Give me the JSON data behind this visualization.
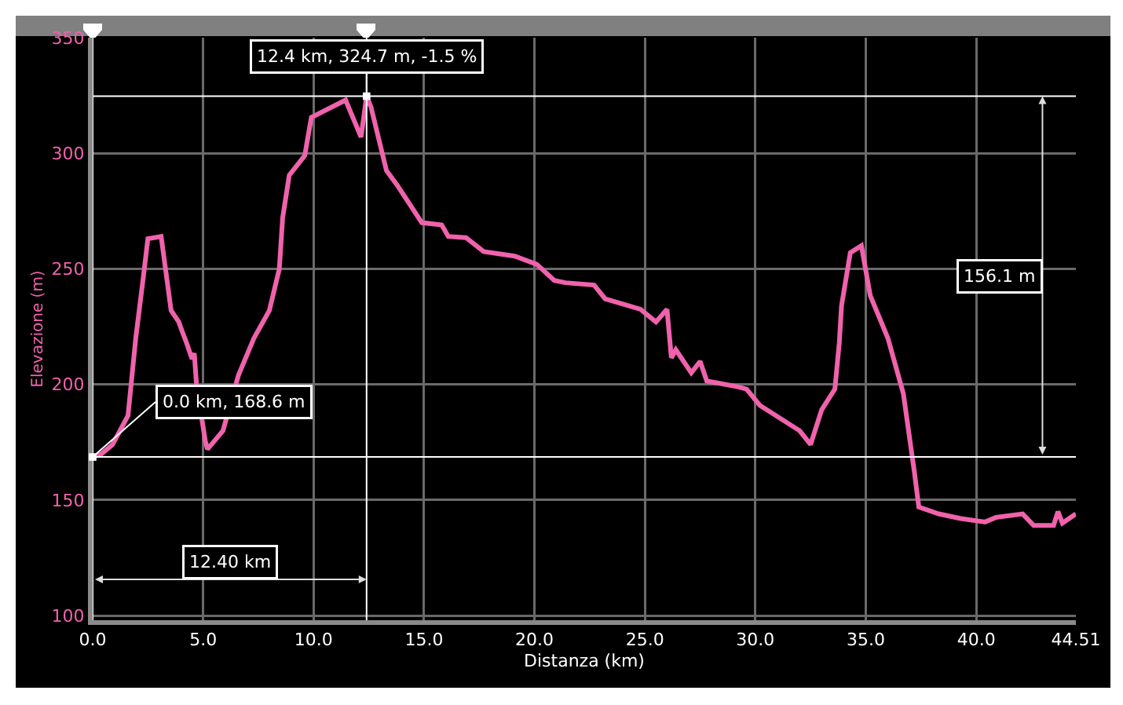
{
  "chart_data": {
    "type": "line",
    "xlabel": "Distanza (km)",
    "ylabel": "Elevazione (m)",
    "x": [
      0,
      0.4,
      0.9,
      1.6,
      1.95,
      2.3,
      2.5,
      3.1,
      3.55,
      3.9,
      4.05,
      4.25,
      4.5,
      4.6,
      4.7,
      5.1,
      5.2,
      5.9,
      6.6,
      7.3,
      8.0,
      8.45,
      8.6,
      8.9,
      9.6,
      9.9,
      11.45,
      12.15,
      12.4,
      12.6,
      13.3,
      13.8,
      14.9,
      15.8,
      16.1,
      16.9,
      17.7,
      19.1,
      20.1,
      20.9,
      21.4,
      22.7,
      23.2,
      24.8,
      25.5,
      26.0,
      26.2,
      26.4,
      27.1,
      27.5,
      27.8,
      29.2,
      29.6,
      30.2,
      32.0,
      32.5,
      33.0,
      33.6,
      33.8,
      33.9,
      34.3,
      34.8,
      35.2,
      36.0,
      36.7,
      37.2,
      37.4,
      38.3,
      39.3,
      40.4,
      40.9,
      42.1,
      42.6,
      43.5,
      43.7,
      43.9,
      44.51
    ],
    "series": [
      {
        "color": "#f062ac",
        "values": [
          168.6,
          170,
          174,
          186.5,
          220,
          247,
          263,
          264,
          232,
          227,
          223,
          218,
          211,
          213.5,
          200,
          175.5,
          172,
          180,
          204,
          220,
          232,
          250,
          272,
          290.5,
          299,
          315.5,
          323,
          307,
          324.7,
          320,
          292.5,
          286,
          270,
          269,
          264,
          263.5,
          257.5,
          255.5,
          252,
          245,
          244,
          243,
          237,
          232.5,
          227,
          232.5,
          211.5,
          215,
          205,
          210,
          201.5,
          199,
          198,
          191,
          180,
          174,
          189,
          198,
          218,
          234,
          257,
          260,
          238.5,
          220,
          196,
          162,
          147,
          144,
          142,
          140.5,
          142.5,
          144,
          139,
          139,
          145,
          140,
          144
        ]
      }
    ],
    "xlim": [
      0,
      44.51
    ],
    "ylim": [
      98,
      350
    ],
    "xticks": [
      {
        "value": 0,
        "label": "0.0"
      },
      {
        "value": 5,
        "label": "5.0"
      },
      {
        "value": 10,
        "label": "10.0"
      },
      {
        "value": 15,
        "label": "15.0"
      },
      {
        "value": 20,
        "label": "20.0"
      },
      {
        "value": 25,
        "label": "25.0"
      },
      {
        "value": 30,
        "label": "30.0"
      },
      {
        "value": 35,
        "label": "35.0"
      },
      {
        "value": 40,
        "label": "40.0"
      },
      44.51
    ],
    "yticks": [
      100,
      150,
      200,
      250,
      300,
      350
    ],
    "grid": true,
    "ref_lines": [
      {
        "axis": "x",
        "value": 0,
        "color": "#ffffff"
      },
      {
        "axis": "x",
        "value": 12.4,
        "color": "#ffffff"
      },
      {
        "axis": "y",
        "value": 324.7,
        "color": "#ffffff"
      },
      {
        "axis": "y",
        "value": 168.6,
        "color": "#ffffff"
      }
    ],
    "annotations": [
      {
        "text": "12.4 km, 324.7 m, -1.5 %",
        "x": 12.4,
        "y": 324.7
      },
      {
        "text": "0.0 km, 168.6 m",
        "x": 0,
        "y": 168.6
      },
      "12.40 km",
      "156.1 m"
    ]
  }
}
